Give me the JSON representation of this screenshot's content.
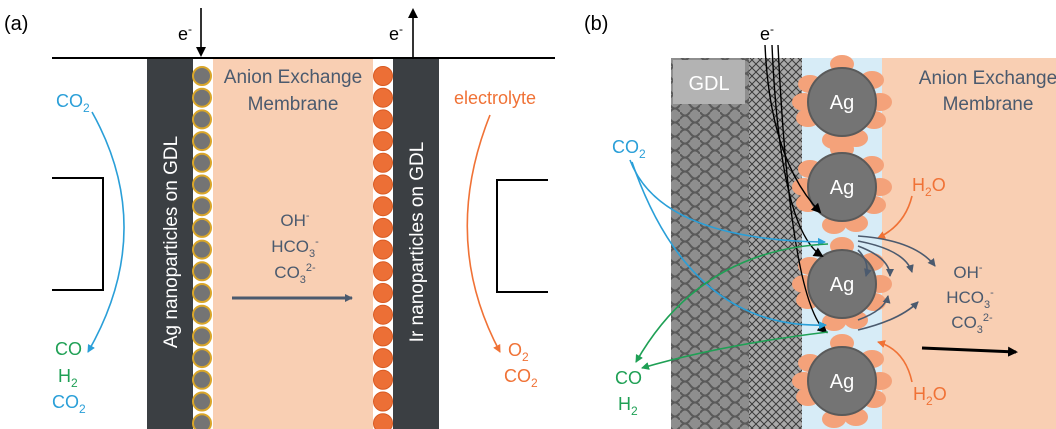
{
  "panel_a": {
    "tag": "(a)",
    "electron_in": "e",
    "electron_out": "e",
    "electron_sup": "-",
    "co2_in": {
      "base": "CO",
      "sub": "2"
    },
    "cathode_label": "Ag nanoparticles on GDL",
    "anode_label": "Ir nanoparticles on GDL",
    "membrane_line1": "Anion Exchange",
    "membrane_line2": "Membrane",
    "electrolyte": "electrolyte",
    "ions": {
      "oh": {
        "base": "OH",
        "sup": "-"
      },
      "hco3": {
        "base": "HCO",
        "sub": "3",
        "sup": "-"
      },
      "co3": {
        "base": "CO",
        "sub": "3",
        "sup": "2-"
      }
    },
    "products_left": {
      "co": "CO",
      "h2": {
        "base": "H",
        "sub": "2"
      },
      "co2": {
        "base": "CO",
        "sub": "2"
      }
    },
    "products_right": {
      "o2": {
        "base": "O",
        "sub": "2"
      },
      "co2": {
        "base": "CO",
        "sub": "2"
      }
    }
  },
  "panel_b": {
    "tag": "(b)",
    "gdl": "GDL",
    "electron": "e",
    "electron_sup": "-",
    "membrane_line1": "Anion Exchange",
    "membrane_line2": "Membrane",
    "particle_label": "Ag",
    "co2_in": {
      "base": "CO",
      "sub": "2"
    },
    "h2o_top": {
      "base": "H",
      "sub": "2",
      "tail": "O"
    },
    "h2o_bottom": {
      "base": "H",
      "sub": "2",
      "tail": "O"
    },
    "ions": {
      "oh": {
        "base": "OH",
        "sup": "-"
      },
      "hco3": {
        "base": "HCO",
        "sub": "3",
        "sup": "-"
      },
      "co3": {
        "base": "CO",
        "sub": "3",
        "sup": "2-"
      }
    },
    "products": {
      "co": "CO",
      "h2": {
        "base": "H",
        "sub": "2"
      }
    }
  },
  "colors": {
    "co2_blue": "#2a9fd8",
    "product_green": "#1fa055",
    "anion_orange": "#f07236",
    "ion_slate": "#4b5a6e",
    "electrode_dark": "#3b3f43",
    "membrane_peach": "#f9cfb3",
    "ag_gray": "#747474",
    "ag_rim": "#d9a62a",
    "ir_orange": "#ec6f36",
    "catalyst_blue": "#d7ecf7",
    "black": "#000000"
  }
}
